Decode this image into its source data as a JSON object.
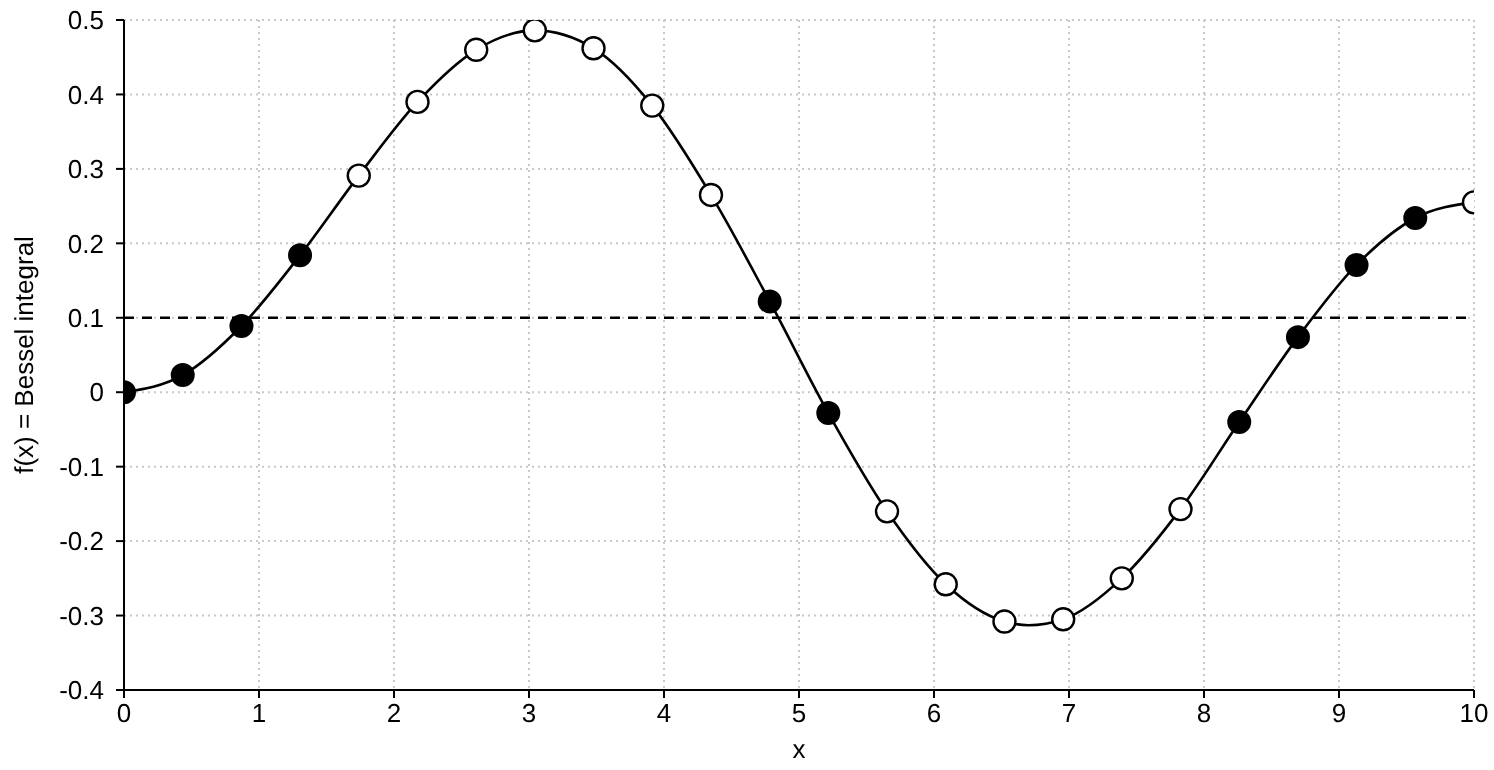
{
  "chart_data": {
    "type": "scatter",
    "xlabel": "x",
    "ylabel": "f(x) = Bessel integral",
    "xlim": [
      0,
      10
    ],
    "xticks": [
      0,
      1,
      2,
      3,
      4,
      5,
      6,
      7,
      8,
      9,
      10
    ],
    "ylim": [
      -0.4,
      0.5
    ],
    "yticks": [
      -0.4,
      -0.3,
      -0.2,
      -0.1,
      0,
      0.1,
      0.2,
      0.3,
      0.4,
      0.5
    ],
    "grid": true,
    "series": [
      {
        "type": "line",
        "color": "#000000",
        "marker": "none",
        "x": [
          0,
          0.435,
          0.87,
          1.304,
          1.739,
          2.174,
          2.609,
          3.043,
          3.478,
          3.913,
          4.348,
          4.783,
          5.217,
          5.652,
          6.087,
          6.522,
          6.7,
          6.957,
          7.391,
          7.826,
          8.261,
          8.696,
          9.13,
          9.565,
          10
        ],
        "values": [
          0,
          0.023,
          0.089,
          0.184,
          0.291,
          0.39,
          0.46,
          0.486,
          0.462,
          0.385,
          0.265,
          0.122,
          -0.028,
          -0.16,
          -0.258,
          -0.308,
          -0.313,
          -0.305,
          -0.25,
          -0.157,
          -0.04,
          0.074,
          0.171,
          0.234,
          0.255
        ]
      },
      {
        "color": "#000000",
        "marker": "circle",
        "x": [
          0,
          0.435,
          0.87,
          1.304,
          4.783,
          5.217,
          8.261,
          8.696,
          9.13,
          9.565
        ],
        "values": [
          0,
          0.023,
          0.089,
          0.184,
          0.122,
          -0.028,
          -0.04,
          0.074,
          0.171,
          0.234
        ]
      },
      {
        "color": "#000000",
        "marker": "circle-open",
        "x": [
          1.739,
          2.174,
          2.609,
          3.043,
          3.478,
          3.913,
          4.348,
          5.652,
          6.087,
          6.522,
          6.957,
          7.391,
          7.826,
          10
        ],
        "values": [
          0.291,
          0.39,
          0.46,
          0.486,
          0.462,
          0.385,
          0.265,
          -0.16,
          -0.258,
          -0.308,
          -0.305,
          -0.25,
          -0.157,
          0.255
        ]
      }
    ],
    "ref_lines": [
      {
        "axis": "y",
        "value": 0.1,
        "color": "#000000",
        "line_style": "dashed"
      }
    ]
  }
}
